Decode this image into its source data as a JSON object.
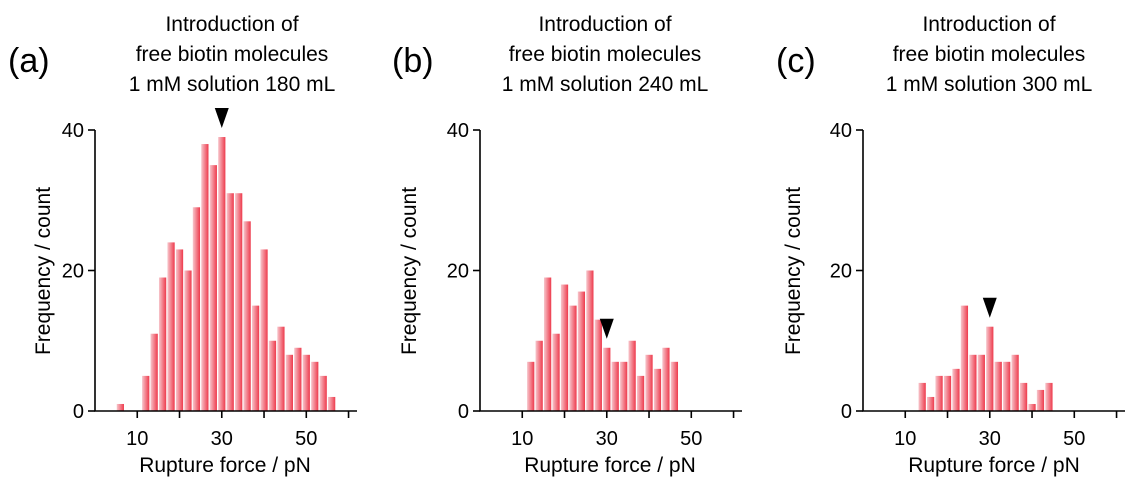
{
  "chart_data": [
    {
      "panel": "(a)",
      "type": "bar",
      "title": [
        "Introduction of",
        "free biotin molecules",
        "1 mM solution 180 mL"
      ],
      "xlabel": "Rupture force / pN",
      "ylabel": "Frequency / count",
      "xlim": [
        0,
        62
      ],
      "ylim": [
        0,
        40
      ],
      "xticks": [
        10,
        30,
        50
      ],
      "yticks": [
        0,
        20,
        40
      ],
      "bin_width": 2,
      "x": [
        6,
        12,
        14,
        16,
        18,
        20,
        22,
        24,
        26,
        28,
        30,
        32,
        34,
        36,
        38,
        40,
        42,
        44,
        46,
        48,
        50,
        52,
        54,
        56,
        58,
        60
      ],
      "values": [
        1,
        5,
        11,
        19,
        24,
        23,
        20,
        29,
        38,
        35,
        39,
        31,
        31,
        27,
        15,
        23,
        10,
        12,
        8,
        9,
        8,
        7,
        5,
        2,
        0,
        0
      ],
      "marker_x": 30,
      "bar_color": "#ef4a5a"
    },
    {
      "panel": "(b)",
      "type": "bar",
      "title": [
        "Introduction of",
        "free biotin molecules",
        "1 mM solution 240 mL"
      ],
      "xlabel": "Rupture force / pN",
      "ylabel": "Frequency / count",
      "xlim": [
        0,
        62
      ],
      "ylim": [
        0,
        40
      ],
      "xticks": [
        10,
        30,
        50
      ],
      "yticks": [
        0,
        20,
        40
      ],
      "bin_width": 2,
      "x": [
        12,
        14,
        16,
        18,
        20,
        22,
        24,
        26,
        28,
        30,
        32,
        34,
        36,
        38,
        40,
        42,
        44,
        46,
        48,
        50,
        52,
        54,
        56
      ],
      "values": [
        7,
        10,
        19,
        11,
        18,
        15,
        17,
        20,
        13,
        9,
        7,
        7,
        10,
        5,
        8,
        6,
        9,
        7,
        0,
        0,
        0,
        0,
        0
      ],
      "marker_x": 30,
      "bar_color": "#ef4a5a"
    },
    {
      "panel": "(c)",
      "type": "bar",
      "title": [
        "Introduction of",
        "free biotin molecules",
        "1 mM solution 300 mL"
      ],
      "xlabel": "Rupture force / pN",
      "ylabel": "Frequency / count",
      "xlim": [
        0,
        62
      ],
      "ylim": [
        0,
        40
      ],
      "xticks": [
        10,
        30,
        50
      ],
      "yticks": [
        0,
        20,
        40
      ],
      "bin_width": 2,
      "x": [
        14,
        16,
        18,
        20,
        22,
        24,
        26,
        28,
        30,
        32,
        34,
        36,
        38,
        40,
        42,
        44,
        46,
        48,
        50,
        52
      ],
      "values": [
        4,
        2,
        5,
        5,
        6,
        15,
        8,
        8,
        12,
        7,
        7,
        8,
        4,
        1,
        3,
        4,
        0,
        0,
        0,
        0
      ],
      "marker_x": 30,
      "bar_color": "#ef4a5a"
    }
  ]
}
